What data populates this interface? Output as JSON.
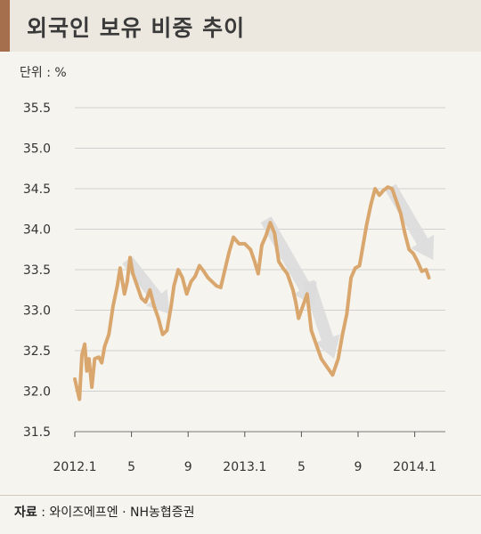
{
  "title": "외국인 보유 비중 추이",
  "unit_label": "단위 : %",
  "source": {
    "label": "자료",
    "text": " : 와이즈에프엔 · NH농협증권"
  },
  "colors": {
    "line": "#d9a76e",
    "arrow": "#dcdcdc",
    "grid": "#cfcfcf",
    "header_accent": "#a56f4e"
  },
  "chart_data": {
    "type": "line",
    "title": "외국인 보유 비중 추이",
    "xlabel": "",
    "ylabel": "단위 : %",
    "ylim": [
      31.5,
      35.5
    ],
    "xlim": [
      0,
      28
    ],
    "grid": true,
    "y_ticks": [
      "35.5",
      "35.0",
      "34.5",
      "34.0",
      "33.5",
      "33.0",
      "32.5",
      "32.0",
      "31.5"
    ],
    "x_ticks": [
      {
        "label": "2012.1",
        "x": 0
      },
      {
        "label": "5",
        "x": 4
      },
      {
        "label": "9",
        "x": 8
      },
      {
        "label": "2013.1",
        "x": 12
      },
      {
        "label": "5",
        "x": 16
      },
      {
        "label": "9",
        "x": 20
      },
      {
        "label": "2014.1",
        "x": 24
      }
    ],
    "series": [
      {
        "values": [
          [
            0.0,
            32.15
          ],
          [
            0.33,
            31.9
          ],
          [
            0.5,
            32.45
          ],
          [
            0.7,
            32.58
          ],
          [
            0.85,
            32.25
          ],
          [
            1.0,
            32.4
          ],
          [
            1.2,
            32.05
          ],
          [
            1.4,
            32.4
          ],
          [
            1.7,
            32.42
          ],
          [
            1.9,
            32.35
          ],
          [
            2.1,
            32.55
          ],
          [
            2.4,
            32.7
          ],
          [
            2.7,
            33.05
          ],
          [
            3.0,
            33.3
          ],
          [
            3.2,
            33.52
          ],
          [
            3.5,
            33.2
          ],
          [
            3.7,
            33.35
          ],
          [
            3.9,
            33.65
          ],
          [
            4.1,
            33.45
          ],
          [
            4.4,
            33.3
          ],
          [
            4.7,
            33.15
          ],
          [
            5.0,
            33.1
          ],
          [
            5.3,
            33.25
          ],
          [
            5.6,
            33.05
          ],
          [
            5.9,
            32.9
          ],
          [
            6.2,
            32.7
          ],
          [
            6.5,
            32.75
          ],
          [
            6.8,
            33.05
          ],
          [
            7.0,
            33.3
          ],
          [
            7.3,
            33.5
          ],
          [
            7.6,
            33.4
          ],
          [
            7.9,
            33.2
          ],
          [
            8.2,
            33.35
          ],
          [
            8.5,
            33.42
          ],
          [
            8.8,
            33.55
          ],
          [
            9.1,
            33.48
          ],
          [
            9.4,
            33.4
          ],
          [
            9.7,
            33.35
          ],
          [
            10.0,
            33.3
          ],
          [
            10.3,
            33.28
          ],
          [
            10.6,
            33.5
          ],
          [
            10.9,
            33.72
          ],
          [
            11.2,
            33.9
          ],
          [
            11.6,
            33.82
          ],
          [
            12.0,
            33.82
          ],
          [
            12.4,
            33.75
          ],
          [
            12.7,
            33.6
          ],
          [
            12.95,
            33.45
          ],
          [
            13.2,
            33.8
          ],
          [
            13.5,
            33.92
          ],
          [
            13.8,
            34.08
          ],
          [
            14.1,
            33.95
          ],
          [
            14.4,
            33.6
          ],
          [
            14.7,
            33.52
          ],
          [
            15.0,
            33.45
          ],
          [
            15.2,
            33.35
          ],
          [
            15.4,
            33.25
          ],
          [
            15.6,
            33.1
          ],
          [
            15.8,
            32.9
          ],
          [
            16.1,
            33.05
          ],
          [
            16.4,
            33.2
          ],
          [
            16.7,
            32.75
          ],
          [
            17.0,
            32.6
          ],
          [
            17.4,
            32.4
          ],
          [
            17.8,
            32.3
          ],
          [
            18.2,
            32.2
          ],
          [
            18.6,
            32.4
          ],
          [
            18.9,
            32.7
          ],
          [
            19.2,
            32.95
          ],
          [
            19.5,
            33.4
          ],
          [
            19.8,
            33.52
          ],
          [
            20.1,
            33.55
          ],
          [
            20.3,
            33.75
          ],
          [
            20.6,
            34.05
          ],
          [
            20.9,
            34.3
          ],
          [
            21.2,
            34.5
          ],
          [
            21.5,
            34.42
          ],
          [
            21.8,
            34.48
          ],
          [
            22.1,
            34.52
          ],
          [
            22.4,
            34.5
          ],
          [
            22.7,
            34.35
          ],
          [
            23.0,
            34.2
          ],
          [
            23.3,
            33.95
          ],
          [
            23.6,
            33.75
          ],
          [
            23.9,
            33.7
          ],
          [
            24.2,
            33.6
          ],
          [
            24.5,
            33.48
          ],
          [
            24.8,
            33.5
          ],
          [
            25.0,
            33.4
          ]
        ]
      }
    ],
    "annotations": [
      {
        "type": "arrow",
        "from": [
          3.7,
          33.62
        ],
        "to": [
          6.7,
          32.95
        ]
      },
      {
        "type": "arrow",
        "from": [
          13.5,
          34.12
        ],
        "to": [
          17.0,
          33.05
        ]
      },
      {
        "type": "arrow",
        "from": [
          16.5,
          33.35
        ],
        "to": [
          18.3,
          32.4
        ]
      },
      {
        "type": "arrow",
        "from": [
          22.3,
          34.52
        ],
        "to": [
          25.3,
          33.62
        ]
      }
    ]
  }
}
